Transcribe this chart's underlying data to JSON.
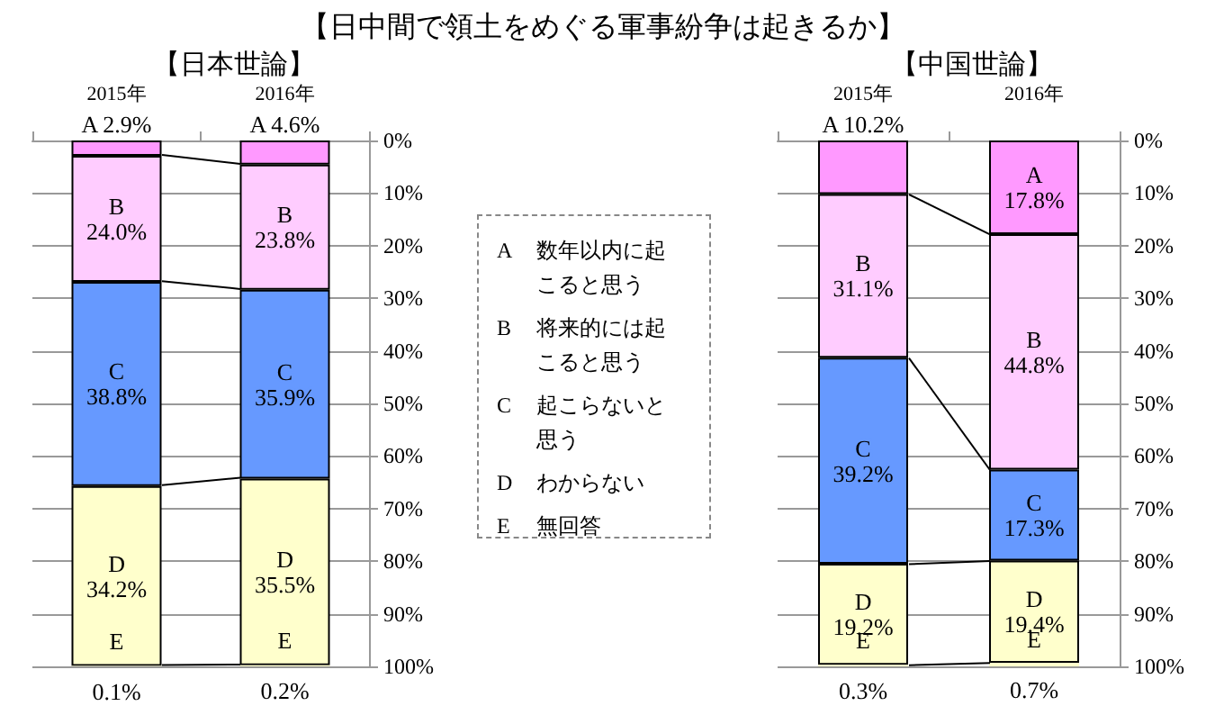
{
  "chart_data": [
    {
      "type": "bar",
      "title": "【日本世論】",
      "categories": [
        "2015年",
        "2016年"
      ],
      "stacked": true,
      "legend": false,
      "grid": "y",
      "ylim": [
        100,
        0
      ],
      "yticks": [
        {
          "value": 0,
          "label": "0%"
        },
        {
          "value": 10,
          "label": "10%"
        },
        {
          "value": 20,
          "label": "20%"
        },
        {
          "value": 30,
          "label": "30%"
        },
        {
          "value": 40,
          "label": "40%"
        },
        {
          "value": 50,
          "label": "50%"
        },
        {
          "value": 60,
          "label": "60%"
        },
        {
          "value": 70,
          "label": "70%"
        },
        {
          "value": 80,
          "label": "80%"
        },
        {
          "value": 90,
          "label": "90%"
        },
        {
          "value": 100,
          "label": "100%"
        }
      ],
      "series": [
        {
          "name": "A",
          "color": "#ff99ff",
          "values": [
            2.9,
            4.6
          ],
          "value_labels": [
            "2.9%",
            "4.6%"
          ]
        },
        {
          "name": "B",
          "color": "#ffccff",
          "values": [
            24.0,
            23.8
          ],
          "value_labels": [
            "24.0%",
            "23.8%"
          ]
        },
        {
          "name": "C",
          "color": "#6699ff",
          "values": [
            38.8,
            35.9
          ],
          "value_labels": [
            "38.8%",
            "35.9%"
          ]
        },
        {
          "name": "D",
          "color": "#ffffcc",
          "values": [
            34.2,
            35.5
          ],
          "value_labels": [
            "34.2%",
            "35.5%"
          ]
        },
        {
          "name": "E",
          "color": "#ffffcc",
          "values": [
            0.1,
            0.2
          ],
          "value_labels": [
            "0.1%",
            "0.2%"
          ]
        }
      ]
    },
    {
      "type": "other",
      "title": "【日中間で領土をめぐる軍事紛争は起きるか】",
      "annotations": [
        "A",
        "数年以内に起こると思う",
        "B",
        "将来的には起こると思う",
        "C",
        "起こらないと思う",
        "D",
        "わからない",
        "E",
        "無回答"
      ]
    },
    {
      "type": "bar",
      "title": "【中国世論】",
      "categories": [
        "2015年",
        "2016年"
      ],
      "stacked": true,
      "legend": false,
      "grid": "y",
      "ylim": [
        100,
        0
      ],
      "yticks": [
        {
          "value": 0,
          "label": "0%"
        },
        {
          "value": 10,
          "label": "10%"
        },
        {
          "value": 20,
          "label": "20%"
        },
        {
          "value": 30,
          "label": "30%"
        },
        {
          "value": 40,
          "label": "40%"
        },
        {
          "value": 50,
          "label": "50%"
        },
        {
          "value": 60,
          "label": "60%"
        },
        {
          "value": 70,
          "label": "70%"
        },
        {
          "value": 80,
          "label": "80%"
        },
        {
          "value": 90,
          "label": "90%"
        },
        {
          "value": 100,
          "label": "100%"
        }
      ],
      "series": [
        {
          "name": "A",
          "color": "#ff99ff",
          "values": [
            10.2,
            17.8
          ],
          "value_labels": [
            "10.2%",
            "17.8%"
          ]
        },
        {
          "name": "B",
          "color": "#ffccff",
          "values": [
            31.1,
            44.8
          ],
          "value_labels": [
            "31.1%",
            "44.8%"
          ]
        },
        {
          "name": "C",
          "color": "#6699ff",
          "values": [
            39.2,
            17.3
          ],
          "value_labels": [
            "39.2%",
            "17.3%"
          ]
        },
        {
          "name": "D",
          "color": "#ffffcc",
          "values": [
            19.2,
            19.4
          ],
          "value_labels": [
            "19.2%",
            "19.4%"
          ]
        },
        {
          "name": "E",
          "color": "#ffffcc",
          "values": [
            0.3,
            0.7
          ],
          "value_labels": [
            "0.3%",
            "0.7%"
          ]
        }
      ]
    }
  ]
}
